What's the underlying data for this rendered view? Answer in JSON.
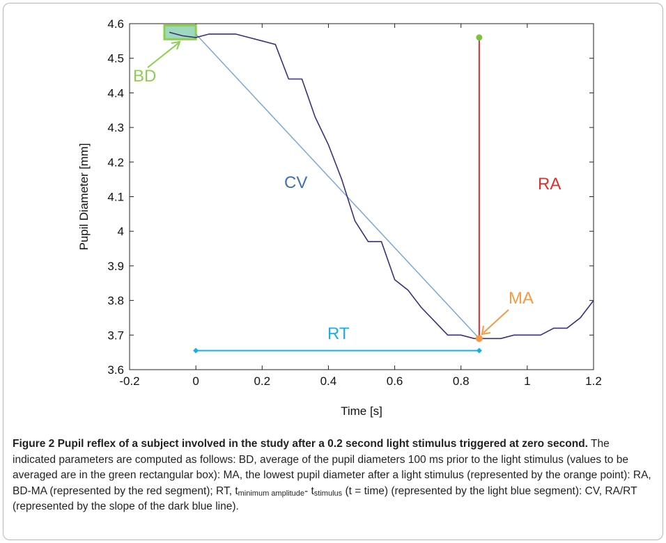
{
  "chart_data": {
    "type": "line",
    "xlabel": "Time [s]",
    "ylabel": "Pupil Diameter [mm]",
    "xlim": [
      -0.2,
      1.2
    ],
    "ylim": [
      3.6,
      4.6
    ],
    "xticks": [
      "-0.2",
      "0",
      "0.2",
      "0.4",
      "0.6",
      "0.8",
      "1",
      "1.2"
    ],
    "yticks": [
      "3.6",
      "3.7",
      "3.8",
      "3.9",
      "4",
      "4.1",
      "4.2",
      "4.3",
      "4.4",
      "4.5",
      "4.6"
    ],
    "grid": false,
    "series": [
      {
        "color": "#3b2e7a",
        "x": [
          -0.08,
          -0.04,
          0.0,
          0.04,
          0.12,
          0.16,
          0.2,
          0.24,
          0.28,
          0.32,
          0.36,
          0.4,
          0.44,
          0.48,
          0.52,
          0.56,
          0.6,
          0.64,
          0.68,
          0.72,
          0.76,
          0.8,
          0.84,
          0.88,
          0.92,
          0.96,
          1.0,
          1.04,
          1.08,
          1.12,
          1.16,
          1.2
        ],
        "y": [
          4.575,
          4.565,
          4.56,
          4.57,
          4.57,
          4.56,
          4.55,
          4.54,
          4.44,
          4.44,
          4.33,
          4.25,
          4.15,
          4.03,
          3.97,
          3.97,
          3.86,
          3.83,
          3.78,
          3.74,
          3.7,
          3.7,
          3.69,
          3.69,
          3.69,
          3.7,
          3.7,
          3.7,
          3.72,
          3.72,
          3.75,
          3.8
        ]
      }
    ],
    "annotations": {
      "cv_line": {
        "color": "#7aa8d8",
        "label": "CV",
        "x1": 0.0,
        "y1": 4.57,
        "x2": 0.855,
        "y2": 3.69
      },
      "ra_segment": {
        "color": "#e32c2c",
        "label": "RA",
        "x": 0.855,
        "y1": 4.56,
        "y2": 3.69
      },
      "rt_segment": {
        "color": "#18aee8",
        "label": "RT",
        "x1": 0.0,
        "x2": 0.855,
        "y": 3.655
      },
      "ma_point": {
        "color": "#f59a42",
        "label": "MA",
        "x": 0.855,
        "y": 3.69
      },
      "bd_box": {
        "color": "#8ccf4e",
        "fill": "#9fd9bd",
        "label": "BD",
        "x1": -0.095,
        "x2": 0.0,
        "y1": 4.555,
        "y2": 4.595
      }
    }
  },
  "caption": {
    "title": "Figure 2 Pupil reflex of a subject involved in the study after a 0.2 second light stimulus triggered at zero second.",
    "text_1": " The indicated parameters are computed as follows: BD, average of the pupil diameters 100 ms prior to the light stimulus (values to be averaged are in the green rectangular box): MA, the lowest pupil diameter after a light stimulus (represented by the orange point): RA, BD-MA (represented by the red segment); RT, t",
    "sub_1": "minimum amplitude",
    "text_2": "- t",
    "sub_2": "stimulus",
    "text_3": " (t = time) (represented by the light blue segment): CV, RA/RT (represented by the slope of the dark blue line)."
  }
}
